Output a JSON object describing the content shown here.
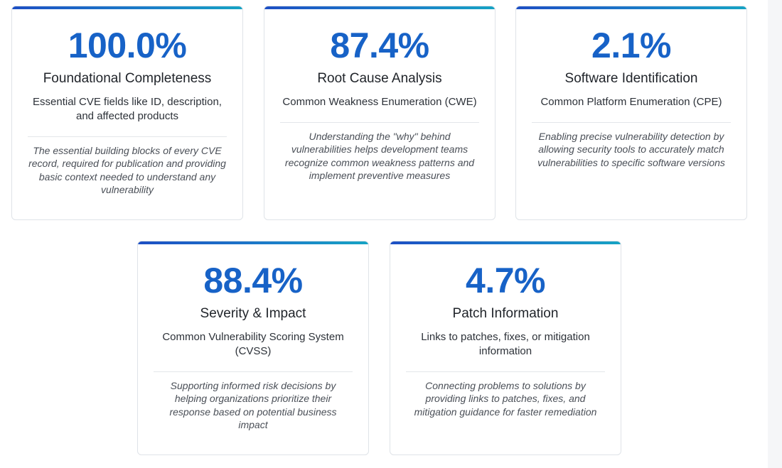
{
  "cards": [
    {
      "percent": "100.0%",
      "title": "Foundational Completeness",
      "subtitle": "Essential CVE fields like ID, description, and affected products",
      "description": "The essential building blocks of every CVE record, required for publication and providing basic context needed to understand any vulnerability"
    },
    {
      "percent": "87.4%",
      "title": "Root Cause Analysis",
      "subtitle": "Common Weakness Enumeration (CWE)",
      "description": "Understanding the \"why\" behind vulnerabilities helps development teams recognize common weakness patterns and implement preventive measures"
    },
    {
      "percent": "2.1%",
      "title": "Software Identification",
      "subtitle": "Common Platform Enumeration (CPE)",
      "description": "Enabling precise vulnerability detection by allowing security tools to accurately match vulnerabilities to specific software versions"
    },
    {
      "percent": "88.4%",
      "title": "Severity & Impact",
      "subtitle": "Common Vulnerability Scoring System (CVSS)",
      "description": "Supporting informed risk decisions by helping organizations prioritize their response based on potential business impact"
    },
    {
      "percent": "4.7%",
      "title": "Patch Information",
      "subtitle": "Links to patches, fixes, or mitigation information",
      "description": "Connecting problems to solutions by providing links to patches, fixes, and mitigation guidance for faster remediation"
    }
  ],
  "colors": {
    "accent_start": "#1d4fc4",
    "accent_end": "#16a3c4",
    "percent": "#1762c7"
  }
}
